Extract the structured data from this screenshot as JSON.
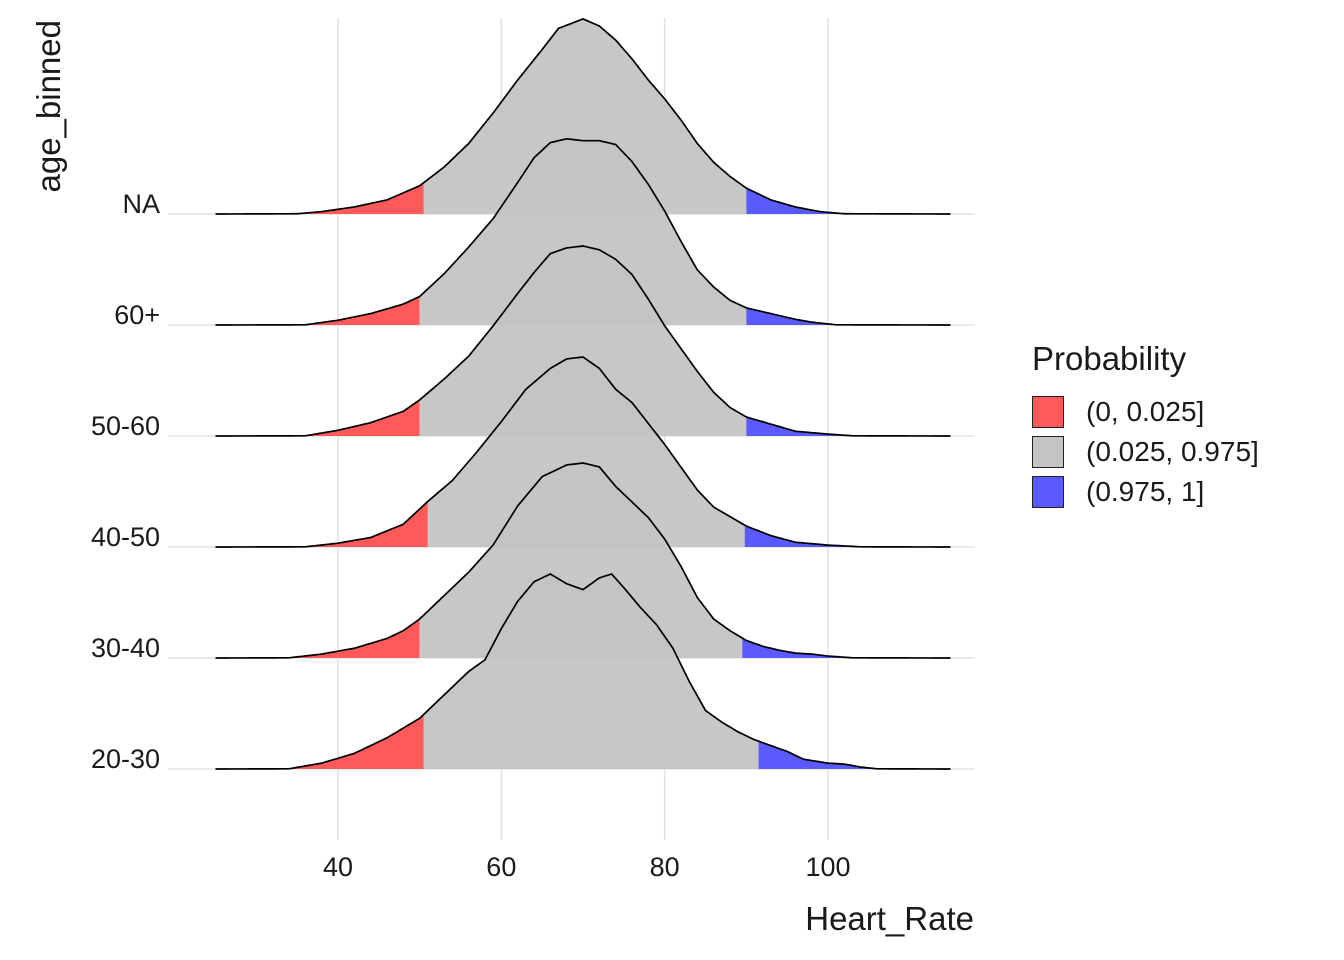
{
  "chart_data": {
    "type": "ridgeline",
    "xlabel": "Heart_Rate",
    "ylabel": "age_binned",
    "xlim": [
      25,
      115
    ],
    "x_ticks": [
      40,
      60,
      80,
      100
    ],
    "x_tick_labels": [
      "40",
      "60",
      "80",
      "100"
    ],
    "grid": true,
    "legend": {
      "title": "Probability",
      "position": "right",
      "entries": [
        {
          "label": "(0, 0.025]",
          "color": "#ff5a5a"
        },
        {
          "label": "(0.025, 0.975]",
          "color": "#c4c4c4"
        },
        {
          "label": "(0.975, 1]",
          "color": "#5a5aff"
        }
      ]
    },
    "series": [
      {
        "name": "20-30",
        "lower_quantile": 50.5,
        "upper_quantile": 91.5,
        "density": [
          [
            25,
            0
          ],
          [
            34,
            0.001
          ],
          [
            38,
            0.03
          ],
          [
            42,
            0.08
          ],
          [
            46,
            0.16
          ],
          [
            50,
            0.26
          ],
          [
            53,
            0.38
          ],
          [
            56,
            0.5
          ],
          [
            58,
            0.56
          ],
          [
            60,
            0.72
          ],
          [
            62,
            0.86
          ],
          [
            64,
            0.96
          ],
          [
            66,
            1.0
          ],
          [
            68,
            0.95
          ],
          [
            70,
            0.92
          ],
          [
            72,
            0.98
          ],
          [
            73.5,
            1.0
          ],
          [
            75,
            0.93
          ],
          [
            77,
            0.83
          ],
          [
            79,
            0.74
          ],
          [
            81,
            0.62
          ],
          [
            83,
            0.45
          ],
          [
            85,
            0.3
          ],
          [
            87,
            0.24
          ],
          [
            89,
            0.19
          ],
          [
            91,
            0.15
          ],
          [
            93,
            0.12
          ],
          [
            95,
            0.09
          ],
          [
            97,
            0.05
          ],
          [
            100,
            0.03
          ],
          [
            102,
            0.025
          ],
          [
            104,
            0.01
          ],
          [
            106,
            0.001
          ],
          [
            115,
            0
          ]
        ]
      },
      {
        "name": "30-40",
        "lower_quantile": 50,
        "upper_quantile": 89.5,
        "density": [
          [
            25,
            0
          ],
          [
            34,
            0.001
          ],
          [
            38,
            0.02
          ],
          [
            42,
            0.05
          ],
          [
            46,
            0.1
          ],
          [
            48,
            0.14
          ],
          [
            50,
            0.2
          ],
          [
            53,
            0.32
          ],
          [
            56,
            0.44
          ],
          [
            59,
            0.58
          ],
          [
            62,
            0.78
          ],
          [
            65,
            0.93
          ],
          [
            68,
            0.99
          ],
          [
            70,
            1.0
          ],
          [
            72,
            0.98
          ],
          [
            74,
            0.88
          ],
          [
            76,
            0.8
          ],
          [
            78,
            0.72
          ],
          [
            80,
            0.61
          ],
          [
            82,
            0.47
          ],
          [
            84,
            0.31
          ],
          [
            86,
            0.2
          ],
          [
            88,
            0.14
          ],
          [
            90,
            0.09
          ],
          [
            92,
            0.06
          ],
          [
            94,
            0.04
          ],
          [
            96,
            0.025
          ],
          [
            98,
            0.02
          ],
          [
            100,
            0.01
          ],
          [
            103,
            0.001
          ],
          [
            115,
            0
          ]
        ]
      },
      {
        "name": "40-50",
        "lower_quantile": 51,
        "upper_quantile": 89.8,
        "density": [
          [
            25,
            0
          ],
          [
            36,
            0.001
          ],
          [
            40,
            0.02
          ],
          [
            44,
            0.05
          ],
          [
            48,
            0.12
          ],
          [
            51,
            0.24
          ],
          [
            54,
            0.35
          ],
          [
            57,
            0.5
          ],
          [
            60,
            0.66
          ],
          [
            63,
            0.83
          ],
          [
            66,
            0.94
          ],
          [
            68,
            0.99
          ],
          [
            70,
            1.0
          ],
          [
            72,
            0.94
          ],
          [
            74,
            0.83
          ],
          [
            76,
            0.76
          ],
          [
            78,
            0.65
          ],
          [
            80,
            0.54
          ],
          [
            82,
            0.42
          ],
          [
            84,
            0.3
          ],
          [
            86,
            0.21
          ],
          [
            88,
            0.16
          ],
          [
            90,
            0.11
          ],
          [
            93,
            0.06
          ],
          [
            96,
            0.025
          ],
          [
            100,
            0.01
          ],
          [
            104,
            0.001
          ],
          [
            115,
            0
          ]
        ]
      },
      {
        "name": "50-60",
        "lower_quantile": 50,
        "upper_quantile": 90,
        "density": [
          [
            25,
            0
          ],
          [
            36,
            0.001
          ],
          [
            40,
            0.03
          ],
          [
            44,
            0.07
          ],
          [
            48,
            0.13
          ],
          [
            50,
            0.19
          ],
          [
            53,
            0.3
          ],
          [
            56,
            0.42
          ],
          [
            59,
            0.58
          ],
          [
            62,
            0.75
          ],
          [
            64,
            0.86
          ],
          [
            66,
            0.96
          ],
          [
            68,
            0.99
          ],
          [
            70,
            1.0
          ],
          [
            72,
            0.98
          ],
          [
            74,
            0.93
          ],
          [
            76,
            0.85
          ],
          [
            78,
            0.72
          ],
          [
            80,
            0.58
          ],
          [
            82,
            0.46
          ],
          [
            84,
            0.34
          ],
          [
            86,
            0.23
          ],
          [
            88,
            0.15
          ],
          [
            90,
            0.1
          ],
          [
            92,
            0.075
          ],
          [
            94,
            0.05
          ],
          [
            96,
            0.025
          ],
          [
            100,
            0.01
          ],
          [
            103,
            0.001
          ],
          [
            115,
            0
          ]
        ]
      },
      {
        "name": "60+",
        "lower_quantile": 50,
        "upper_quantile": 90,
        "density": [
          [
            25,
            0
          ],
          [
            36,
            0.001
          ],
          [
            40,
            0.025
          ],
          [
            44,
            0.06
          ],
          [
            48,
            0.11
          ],
          [
            50,
            0.15
          ],
          [
            53,
            0.27
          ],
          [
            56,
            0.41
          ],
          [
            59,
            0.56
          ],
          [
            62,
            0.75
          ],
          [
            64,
            0.88
          ],
          [
            66,
            0.96
          ],
          [
            68,
            0.98
          ],
          [
            70,
            0.97
          ],
          [
            72,
            0.97
          ],
          [
            74,
            0.95
          ],
          [
            76,
            0.86
          ],
          [
            78,
            0.74
          ],
          [
            80,
            0.6
          ],
          [
            82,
            0.44
          ],
          [
            84,
            0.29
          ],
          [
            86,
            0.2
          ],
          [
            88,
            0.13
          ],
          [
            90,
            0.09
          ],
          [
            92,
            0.07
          ],
          [
            94,
            0.05
          ],
          [
            96,
            0.03
          ],
          [
            98,
            0.015
          ],
          [
            101,
            0.001
          ],
          [
            115,
            0
          ]
        ]
      },
      {
        "name": "NA",
        "lower_quantile": 50.5,
        "upper_quantile": 90,
        "density": [
          [
            25,
            0
          ],
          [
            35,
            0.001
          ],
          [
            38,
            0.01
          ],
          [
            42,
            0.03
          ],
          [
            46,
            0.06
          ],
          [
            48,
            0.09
          ],
          [
            50,
            0.12
          ],
          [
            53,
            0.2
          ],
          [
            56,
            0.3
          ],
          [
            59,
            0.43
          ],
          [
            62,
            0.57
          ],
          [
            65,
            0.7
          ],
          [
            67,
            0.79
          ],
          [
            70,
            0.83
          ],
          [
            72,
            0.8
          ],
          [
            74,
            0.74
          ],
          [
            76,
            0.66
          ],
          [
            78,
            0.57
          ],
          [
            80,
            0.49
          ],
          [
            82,
            0.4
          ],
          [
            84,
            0.3
          ],
          [
            86,
            0.22
          ],
          [
            88,
            0.16
          ],
          [
            90,
            0.11
          ],
          [
            93,
            0.06
          ],
          [
            96,
            0.03
          ],
          [
            99,
            0.01
          ],
          [
            102,
            0.001
          ],
          [
            115,
            0
          ]
        ]
      }
    ]
  }
}
